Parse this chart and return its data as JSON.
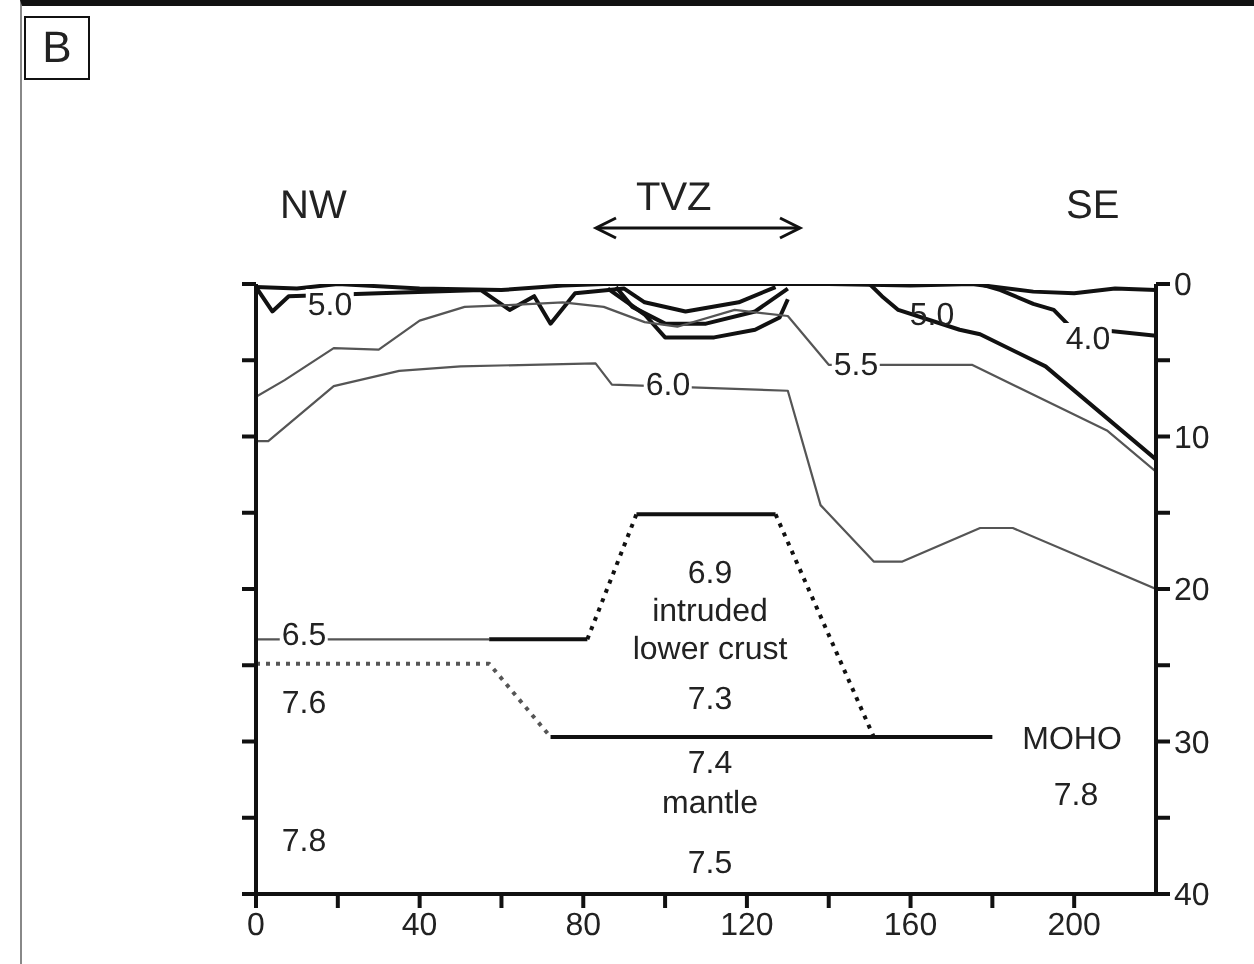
{
  "chart_data": {
    "type": "line",
    "title": "B",
    "xlim": [
      0,
      220
    ],
    "xticks": [
      0,
      {
        "value": 20,
        "label": null
      },
      40,
      {
        "value": 60,
        "label": null
      },
      80,
      {
        "value": 100,
        "label": null
      },
      120,
      {
        "value": 140,
        "label": null
      },
      160,
      {
        "value": 180,
        "label": null
      },
      200
    ],
    "ylim": [
      40,
      0
    ],
    "yticks": [
      0,
      {
        "value": 5,
        "label": null
      },
      10,
      {
        "value": 15,
        "label": null
      },
      20,
      {
        "value": 25,
        "label": null
      },
      30,
      {
        "value": 35,
        "label": null
      },
      40
    ],
    "marker": "none",
    "series": [
      {
        "color": "#111111",
        "x": [
          0,
          10,
          20,
          40,
          60,
          75,
          85,
          100,
          120,
          140,
          160,
          175,
          190,
          200,
          210,
          220
        ],
        "values": [
          0.2,
          0.3,
          0,
          0.3,
          0.4,
          0.1,
          0,
          0,
          0,
          0,
          0.1,
          0,
          0.5,
          0.6,
          0.3,
          0.4
        ]
      },
      {
        "color": "#111111",
        "x": [
          0,
          4,
          8,
          30,
          55,
          62,
          68,
          72,
          78,
          90,
          95,
          105,
          118,
          127
        ],
        "values": [
          0.2,
          1.8,
          0.8,
          0.6,
          0.4,
          1.7,
          0.8,
          2.6,
          0.6,
          0.3,
          1.2,
          1.8,
          1.2,
          0.2
        ]
      },
      {
        "color": "#111111",
        "x": [
          88,
          92,
          100,
          110,
          122,
          130
        ],
        "values": [
          0.2,
          1.5,
          2.6,
          2.6,
          1.8,
          0.3
        ]
      },
      {
        "color": "#111111",
        "x": [
          86,
          95,
          100,
          112,
          122,
          128,
          130
        ],
        "values": [
          0.3,
          2,
          3.5,
          3.5,
          3,
          2.2,
          1
        ]
      },
      {
        "color": "#555555",
        "x": [
          0,
          7,
          19,
          30,
          40,
          51,
          60,
          75,
          85,
          95,
          103,
          117,
          130,
          140,
          175,
          208,
          220
        ],
        "values": [
          7.4,
          6.3,
          4.2,
          4.3,
          2.4,
          1.5,
          1.4,
          1.2,
          1.5,
          2.5,
          2.8,
          1.7,
          2.1,
          5.3,
          5.3,
          9.6,
          12.3
        ]
      },
      {
        "color": "#555555",
        "x": [
          0,
          3,
          19,
          35,
          50,
          83,
          87,
          130,
          138,
          151,
          158,
          177,
          185,
          220
        ],
        "values": [
          10.3,
          10.3,
          6.7,
          5.7,
          5.4,
          5.2,
          6.6,
          7,
          14.5,
          18.2,
          18.2,
          16,
          16,
          20
        ]
      },
      {
        "color": "#111111",
        "x": [
          150,
          153,
          157,
          172,
          177,
          193,
          220
        ],
        "values": [
          0,
          0.8,
          1.7,
          3,
          3.3,
          5.4,
          11.5
        ]
      },
      {
        "color": "#111111",
        "x": [
          177,
          182,
          190,
          195,
          199,
          220
        ],
        "values": [
          0,
          0.4,
          1.3,
          1.7,
          2.8,
          3.4
        ]
      },
      {
        "color": "#555555",
        "x": [
          0,
          57
        ],
        "values": [
          23.3,
          23.3
        ]
      },
      {
        "color": "#111111",
        "x": [
          57,
          81
        ],
        "values": [
          23.3,
          23.3
        ]
      },
      {
        "color": "#111111",
        "x": [
          93,
          127
        ],
        "values": [
          15.1,
          15.1
        ]
      },
      {
        "color": "#111111",
        "line_style": "dotted",
        "x": [
          81,
          93
        ],
        "values": [
          23.3,
          15.1
        ]
      },
      {
        "color": "#111111",
        "line_style": "dotted",
        "x": [
          127,
          151
        ],
        "values": [
          15.1,
          29.7
        ]
      },
      {
        "color": "#111111",
        "x": [
          72,
          180
        ],
        "values": [
          29.7,
          29.7
        ]
      },
      {
        "color": "#555555",
        "line_style": "dotted",
        "x": [
          0,
          57,
          72
        ],
        "values": [
          24.9,
          24.9,
          29.7
        ]
      }
    ],
    "annotations": [
      "NW",
      "TVZ",
      "SE",
      "5.0",
      "6.0",
      "5.5",
      "5.0",
      "4.0",
      "6.5",
      "7.6",
      "7.8",
      "6.9",
      "intruded",
      "lower crust",
      "7.3",
      "7.4",
      "mantle",
      "7.5",
      "MOHO",
      "7.8"
    ]
  }
}
